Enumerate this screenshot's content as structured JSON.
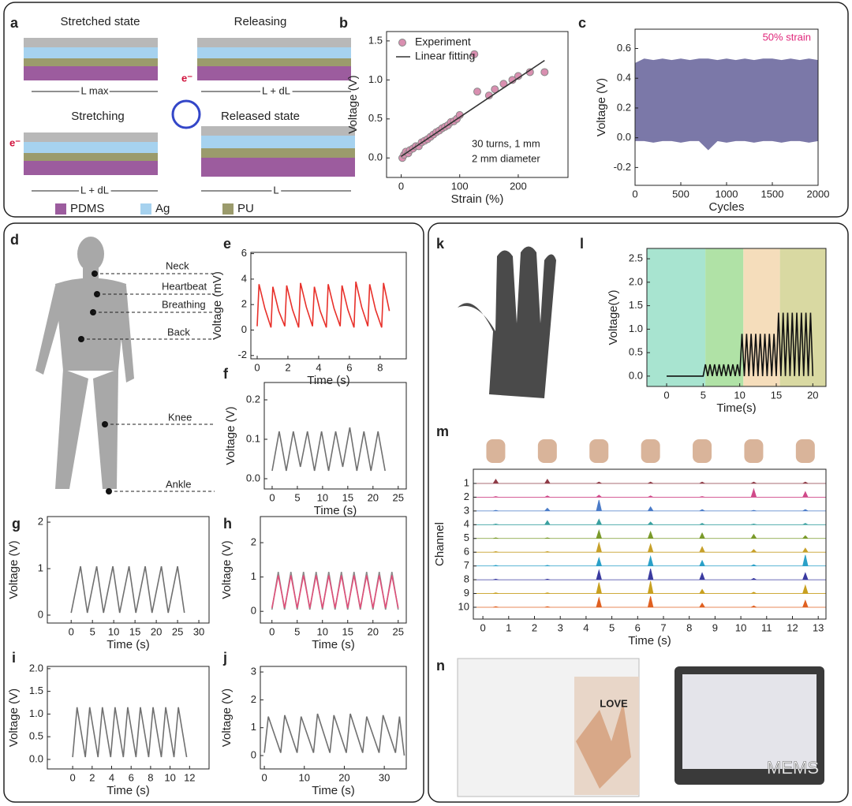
{
  "chart_data": [
    {
      "type": "scatter",
      "panel": "b",
      "xlabel": "Strain (%)",
      "ylabel": "Voltage (V)",
      "xlim": [
        -25,
        285
      ],
      "ylim": [
        -0.25,
        1.62
      ],
      "xticks": [
        0,
        100,
        200
      ],
      "yticks": [
        {
          "value": 0,
          "label": "0.0"
        },
        0.5,
        {
          "value": 1,
          "label": "1.0"
        },
        1.5
      ],
      "legend": "upper left",
      "annotations": [
        "30 turns, 1 mm",
        "2 mm diameter"
      ],
      "series": [
        {
          "name": "Experiment",
          "mode": "markers",
          "color": "#d98fb0",
          "x": [
            2,
            5,
            8,
            12,
            15,
            20,
            25,
            30,
            35,
            40,
            45,
            50,
            55,
            60,
            65,
            70,
            75,
            80,
            85,
            90,
            95,
            100,
            125,
            130,
            150,
            160,
            175,
            190,
            200,
            220,
            245
          ],
          "values": [
            0.0,
            0.04,
            0.08,
            0.06,
            0.1,
            0.12,
            0.15,
            0.15,
            0.2,
            0.22,
            0.24,
            0.27,
            0.3,
            0.33,
            0.35,
            0.38,
            0.4,
            0.42,
            0.46,
            0.47,
            0.5,
            0.55,
            1.33,
            0.85,
            0.8,
            0.88,
            0.95,
            1.0,
            1.05,
            1.1,
            1.1
          ]
        },
        {
          "name": "Linear fitting",
          "mode": "line",
          "color": "#333333",
          "x": [
            0,
            245
          ],
          "values": [
            0.02,
            1.25
          ]
        }
      ]
    },
    {
      "type": "area",
      "panel": "c",
      "xlabel": "Cycles",
      "ylabel": "Voltage (V)",
      "xlim": [
        0,
        2000
      ],
      "ylim": [
        -0.32,
        0.73
      ],
      "xticks": [
        0,
        500,
        1000,
        1500,
        2000
      ],
      "yticks": [
        -0.2,
        {
          "value": 0,
          "label": "0.0"
        },
        0.2,
        0.4,
        0.6
      ],
      "annotations": [
        "50% strain"
      ],
      "annotation_color": "#e0267a",
      "x": [
        0,
        100,
        200,
        300,
        400,
        500,
        600,
        700,
        800,
        900,
        1000,
        1100,
        1200,
        1300,
        1400,
        1500,
        1600,
        1700,
        1800,
        1900,
        2000
      ],
      "series": [
        {
          "color": "#7b78a8",
          "values": [
            0.5,
            0.53,
            0.52,
            0.53,
            0.52,
            0.53,
            0.52,
            0.53,
            0.53,
            0.52,
            0.53,
            0.52,
            0.53,
            0.52,
            0.53,
            0.53,
            0.52,
            0.53,
            0.52,
            0.53,
            0.52
          ]
        },
        {
          "color": "#7b78a8",
          "values": [
            -0.02,
            -0.02,
            -0.03,
            -0.02,
            -0.02,
            -0.03,
            -0.02,
            -0.02,
            -0.08,
            -0.02,
            -0.03,
            -0.02,
            -0.02,
            -0.03,
            -0.02,
            -0.02,
            -0.03,
            -0.02,
            -0.02,
            -0.03,
            -0.02
          ]
        }
      ]
    },
    {
      "type": "line",
      "panel": "e",
      "xlabel": "Time (s)",
      "ylabel": "Voltage (mV)",
      "xlim": [
        -0.41,
        9.7
      ],
      "ylim": [
        -2.26,
        6.1
      ],
      "xticks": [
        0,
        2,
        4,
        6,
        8
      ],
      "yticks": [
        -2,
        0,
        2,
        4,
        6
      ],
      "x": [
        0,
        0.12,
        0.5,
        0.9,
        1.02,
        1.4,
        1.8,
        1.92,
        2.3,
        2.7,
        2.82,
        3.2,
        3.6,
        3.72,
        4.1,
        4.5,
        4.62,
        5.0,
        5.4,
        5.52,
        5.9,
        6.3,
        6.42,
        6.8,
        7.2,
        7.32,
        7.7,
        8.1,
        8.22,
        8.6
      ],
      "series": [
        {
          "color": "#e8302a",
          "values": [
            0.3,
            3.6,
            1.7,
            0.2,
            3.4,
            1.5,
            0.3,
            3.5,
            1.6,
            0.2,
            3.7,
            1.8,
            0.3,
            3.4,
            1.5,
            0.2,
            3.6,
            1.7,
            0.3,
            3.5,
            1.6,
            0.2,
            3.8,
            1.8,
            0.3,
            3.6,
            1.6,
            0.2,
            3.7,
            1.5
          ]
        }
      ]
    },
    {
      "type": "line",
      "panel": "f",
      "xlabel": "Time (s)",
      "ylabel": "Voltage (V)",
      "xlim": [
        -1.56,
        26.6
      ],
      "ylim": [
        -0.026,
        0.244
      ],
      "xticks": [
        0,
        5,
        10,
        15,
        20,
        25
      ],
      "yticks": [
        {
          "value": 0,
          "label": "0.0"
        },
        0.1,
        0.2
      ],
      "x": [
        0,
        1.4,
        2.8,
        4.2,
        5.6,
        7.0,
        8.4,
        9.8,
        11.2,
        12.6,
        14.0,
        15.4,
        16.8,
        18.2,
        19.6,
        21.0,
        22.4
      ],
      "series": [
        {
          "color": "#707070",
          "values": [
            0.02,
            0.12,
            0.02,
            0.12,
            0.03,
            0.12,
            0.02,
            0.12,
            0.02,
            0.12,
            0.03,
            0.13,
            0.02,
            0.12,
            0.02,
            0.12,
            0.02
          ]
        }
      ]
    },
    {
      "type": "line",
      "panel": "g",
      "xlabel": "Time (s)",
      "ylabel": "Voltage (V)",
      "xlim": [
        -5.6,
        32.4
      ],
      "ylim": [
        -0.17,
        2.12
      ],
      "xticks": [
        0,
        5,
        10,
        15,
        20,
        25,
        30
      ],
      "yticks": [
        0,
        1,
        2
      ],
      "x": [
        0,
        2.2,
        3.8,
        6.0,
        7.6,
        9.8,
        11.4,
        13.6,
        15.2,
        17.4,
        19.0,
        21.2,
        22.8,
        25.0,
        26.6
      ],
      "series": [
        {
          "color": "#707070",
          "values": [
            0.05,
            1.05,
            0.05,
            1.05,
            0.05,
            1.05,
            0.05,
            1.05,
            0.05,
            1.05,
            0.05,
            1.05,
            0.05,
            1.05,
            0.05
          ]
        }
      ]
    },
    {
      "type": "line",
      "panel": "h",
      "xlabel": "Time (s)",
      "ylabel": "Voltage (V)",
      "xlim": [
        -2.3,
        26.6
      ],
      "ylim": [
        -0.34,
        2.76
      ],
      "xticks": [
        0,
        5,
        10,
        15,
        20,
        25
      ],
      "yticks": [
        0,
        1,
        2
      ],
      "x": [
        0,
        1.25,
        2.5,
        3.75,
        5,
        6.25,
        7.5,
        8.75,
        10,
        11.25,
        12.5,
        13.75,
        15,
        16.25,
        17.5,
        18.75,
        20,
        21.25,
        22.5,
        23.75,
        25
      ],
      "series": [
        {
          "color": "#8a8a8a",
          "values": [
            0.05,
            1.15,
            0.05,
            1.15,
            0.05,
            1.15,
            0.05,
            1.15,
            0.05,
            1.15,
            0.05,
            1.15,
            0.05,
            1.15,
            0.05,
            1.15,
            0.05,
            1.15,
            0.05,
            1.15,
            0.05
          ]
        },
        {
          "color": "#e0507a",
          "values": [
            0.1,
            1.05,
            0.1,
            1.05,
            0.1,
            1.05,
            0.1,
            1.05,
            0.1,
            1.05,
            0.1,
            1.05,
            0.1,
            1.05,
            0.1,
            1.05,
            0.1,
            1.05,
            0.1,
            1.05,
            0.1
          ]
        }
      ]
    },
    {
      "type": "line",
      "panel": "i",
      "xlabel": "Time (s)",
      "ylabel": "Voltage (V)",
      "xlim": [
        -2.6,
        14.0
      ],
      "ylim": [
        -0.21,
        2.05
      ],
      "xticks": [
        0,
        2,
        4,
        6,
        8,
        10,
        12
      ],
      "yticks": [
        {
          "value": 0,
          "label": "0.0"
        },
        0.5,
        {
          "value": 1,
          "label": "1.0"
        },
        1.5,
        {
          "value": 2,
          "label": "2.0"
        }
      ],
      "x": [
        0,
        0.45,
        1.3,
        1.75,
        2.6,
        3.05,
        3.9,
        4.35,
        5.2,
        5.65,
        6.5,
        6.95,
        7.8,
        8.25,
        9.1,
        9.55,
        10.4,
        10.85,
        11.7
      ],
      "series": [
        {
          "color": "#707070",
          "values": [
            0.05,
            1.15,
            0.05,
            1.15,
            0.05,
            1.15,
            0.05,
            1.15,
            0.05,
            1.15,
            0.05,
            1.15,
            0.05,
            1.15,
            0.05,
            1.15,
            0.05,
            1.15,
            0.05
          ]
        }
      ]
    },
    {
      "type": "line",
      "panel": "j",
      "xlabel": "Time (s)",
      "ylabel": "Voltage (V)",
      "xlim": [
        -1,
        35.5
      ],
      "ylim": [
        -0.48,
        3.2
      ],
      "xticks": [
        0,
        10,
        20,
        30
      ],
      "yticks": [
        0,
        1,
        2,
        3
      ],
      "x": [
        0,
        1,
        4.1,
        5.1,
        8.2,
        9.2,
        12.3,
        13.3,
        16.4,
        17.4,
        20.5,
        21.5,
        24.6,
        25.6,
        28.7,
        29.7,
        32.8,
        33.8,
        35
      ],
      "series": [
        {
          "color": "#707070",
          "values": [
            0.1,
            1.4,
            0.1,
            1.45,
            0.1,
            1.4,
            0.1,
            1.5,
            0.1,
            1.45,
            0.1,
            1.5,
            0.1,
            1.4,
            0.1,
            1.45,
            0.1,
            1.4,
            0.0
          ]
        }
      ]
    },
    {
      "type": "line",
      "panel": "l",
      "xlabel": "Time(s)",
      "ylabel": "Voltage(V)",
      "xlim": [
        -2.7,
        21.8
      ],
      "ylim": [
        -0.22,
        2.72
      ],
      "xticks": [
        0,
        5,
        10,
        15,
        20
      ],
      "yticks": [
        {
          "value": 0,
          "label": "0.0"
        },
        0.5,
        {
          "value": 1,
          "label": "1.0"
        },
        1.5,
        {
          "value": 2,
          "label": "2.0"
        },
        2.5
      ],
      "regions": [
        {
          "xlim": [
            -2.7,
            5.3
          ],
          "color": "#a8e4d0"
        },
        {
          "xlim": [
            5.3,
            10.5
          ],
          "color": "#b0e2a6"
        },
        {
          "xlim": [
            10.5,
            15.5
          ],
          "color": "#f5ddbb"
        },
        {
          "xlim": [
            15.5,
            21.8
          ],
          "color": "#d9d9a2"
        }
      ],
      "x": [
        0,
        5,
        5.31,
        5.63,
        5.94,
        6.25,
        6.56,
        6.88,
        7.19,
        7.5,
        7.81,
        8.13,
        8.44,
        8.75,
        9.06,
        9.38,
        9.69,
        10,
        10.31,
        10.63,
        10.94,
        11.25,
        11.56,
        11.88,
        12.19,
        12.5,
        12.81,
        13.13,
        13.44,
        13.75,
        14.06,
        14.38,
        14.69,
        15,
        15.31,
        15.63,
        15.94,
        16.25,
        16.56,
        16.88,
        17.19,
        17.5,
        17.81,
        18.13,
        18.44,
        18.75,
        19.06,
        19.38,
        19.69,
        20
      ],
      "series": [
        {
          "color": "#111111",
          "values": [
            0,
            0,
            0.25,
            0,
            0.25,
            0,
            0.25,
            0,
            0.25,
            0,
            0.25,
            0,
            0.25,
            0,
            0.25,
            0,
            0.25,
            0,
            0.9,
            0,
            0.9,
            0,
            0.9,
            0,
            0.9,
            0,
            0.9,
            0,
            0.9,
            0,
            0.9,
            0,
            0.9,
            0,
            1.35,
            0,
            1.35,
            0,
            1.35,
            0,
            1.35,
            0,
            1.35,
            0,
            1.35,
            0,
            1.35,
            0,
            1.35,
            0
          ]
        }
      ]
    },
    {
      "type": "spikes",
      "panel": "m",
      "xlabel": "Time (s)",
      "ylabel": "Channel",
      "xlim": [
        -0.37,
        13.3
      ],
      "ylim": [
        10.86,
        -0.03
      ],
      "xticks": [
        0,
        1,
        2,
        3,
        4,
        5,
        6,
        7,
        8,
        9,
        10,
        11,
        12,
        13
      ],
      "yticks": [
        1,
        2,
        3,
        4,
        5,
        6,
        7,
        8,
        9,
        10
      ],
      "baselines": true,
      "x": [
        0.5,
        2.5,
        4.5,
        6.5,
        8.5,
        10.5,
        12.5
      ],
      "series": [
        {
          "color": "#8e3b46",
          "values": [
            0.3,
            0.3,
            0.1,
            0.1,
            0.1,
            0.1,
            0.1
          ]
        },
        {
          "color": "#d04a8a",
          "values": [
            0.05,
            0.1,
            0.15,
            0.1,
            0.05,
            0.6,
            0.4
          ]
        },
        {
          "color": "#4a7bc8",
          "values": [
            0.05,
            0.2,
            0.8,
            0.3,
            0.1,
            0.05,
            0.1
          ]
        },
        {
          "color": "#3aa0a0",
          "values": [
            0.05,
            0.3,
            0.4,
            0.2,
            0.1,
            0.05,
            0.1
          ]
        },
        {
          "color": "#7a9a2a",
          "values": [
            0.05,
            0.05,
            0.6,
            0.5,
            0.4,
            0.3,
            0.2
          ]
        },
        {
          "color": "#c7a02a",
          "values": [
            0.05,
            0.05,
            0.7,
            0.6,
            0.4,
            0.2,
            0.3
          ]
        },
        {
          "color": "#2aa0c8",
          "values": [
            0.05,
            0.05,
            0.6,
            0.7,
            0.4,
            0.1,
            0.8
          ]
        },
        {
          "color": "#3a3aa0",
          "values": [
            0.05,
            0.05,
            0.7,
            0.8,
            0.5,
            0.1,
            0.5
          ]
        },
        {
          "color": "#c8a020",
          "values": [
            0.05,
            0.05,
            0.8,
            0.9,
            0.3,
            0.1,
            0.6
          ]
        },
        {
          "color": "#e06020",
          "values": [
            0.05,
            0.05,
            0.7,
            0.8,
            0.3,
            0.1,
            0.5
          ]
        }
      ]
    }
  ],
  "panel_a": {
    "letter": "a",
    "states": [
      "Stretched state",
      "Releasing",
      "Stretching",
      "Released state"
    ],
    "lengths": [
      "L max",
      "L + dL",
      "L + dL",
      "L"
    ],
    "electron": "e⁻",
    "legend": [
      {
        "name": "PDMS",
        "color": "#9c5c9e"
      },
      {
        "name": "Ag",
        "color": "#a6d2ef"
      },
      {
        "name": "PU",
        "color": "#9b9b6c"
      }
    ]
  },
  "panel_d": {
    "letter": "d",
    "sites": [
      "Neck",
      "Heartbeat",
      "Breathing",
      "Back",
      "Knee",
      "Ankle"
    ]
  },
  "panel_k": {
    "letter": "k"
  },
  "panel_n": {
    "letter": "n",
    "word": "LOVE"
  },
  "watermark": "MEMS"
}
